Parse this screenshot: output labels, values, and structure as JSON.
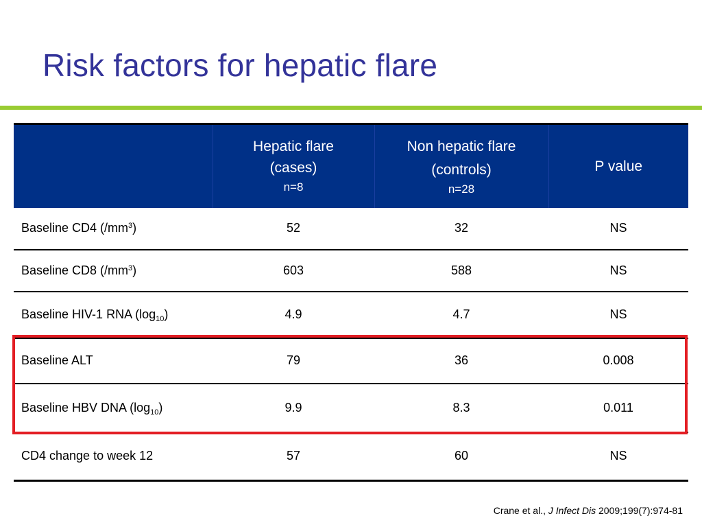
{
  "slide": {
    "title": "Risk factors for hepatic flare"
  },
  "table": {
    "headers": [
      {
        "line1": "",
        "line2": "",
        "n": ""
      },
      {
        "line1": "Hepatic flare",
        "line2": "(cases)",
        "n": "n=8"
      },
      {
        "line1": "Non hepatic flare",
        "line2": "(controls)",
        "n": "n=28"
      },
      {
        "line1": "P value",
        "line2": "",
        "n": ""
      }
    ],
    "rows": [
      {
        "label": "Baseline CD4 (/mm",
        "sup": "3",
        "sub": "",
        "suffix": ")",
        "cases": "52",
        "controls": "32",
        "p": "NS"
      },
      {
        "label": "Baseline CD8 (/mm",
        "sup": "3",
        "sub": "",
        "suffix": ")",
        "cases": "603",
        "controls": "588",
        "p": "NS"
      },
      {
        "label": "Baseline HIV-1 RNA (log",
        "sup": "",
        "sub": "10",
        "suffix": ")",
        "cases": "4.9",
        "controls": "4.7",
        "p": "NS"
      },
      {
        "label": "Baseline ALT",
        "sup": "",
        "sub": "",
        "suffix": "",
        "cases": "79",
        "controls": "36",
        "p": "0.008"
      },
      {
        "label": "Baseline HBV DNA (log",
        "sup": "",
        "sub": "10",
        "suffix": ")",
        "cases": "9.9",
        "controls": "8.3",
        "p": "0.011"
      },
      {
        "label": "CD4 change to week 12",
        "sup": "",
        "sub": "",
        "suffix": "",
        "cases": "57",
        "controls": "60",
        "p": "NS"
      }
    ]
  },
  "citation": {
    "authors": "Crane et al.,",
    "journal": "J Infect Dis",
    "ref": "2009;199(7):974-81"
  },
  "colors": {
    "title": "#333399",
    "rule": "#99cc33",
    "header_bg": "#003087",
    "highlight": "#e31e24"
  }
}
